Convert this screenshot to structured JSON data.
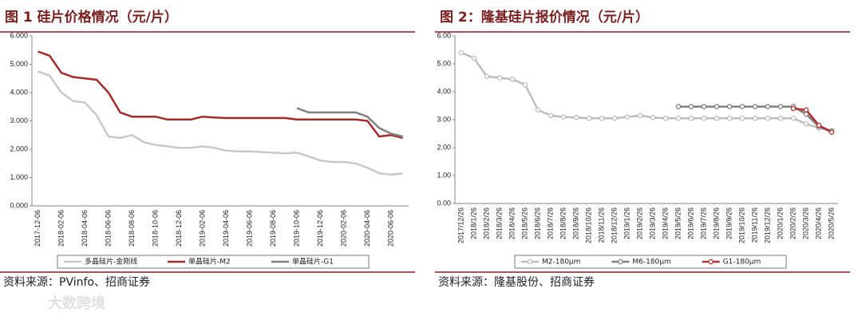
{
  "chart_data": [
    {
      "type": "line",
      "title": "图 1  硅片价格情况（元/片）",
      "source": "资料来源：PVinfo、招商证券",
      "categories": [
        "2017-12-06",
        null,
        "2018-02-06",
        null,
        "2018-04-06",
        null,
        "2018-06-06",
        null,
        "2018-08-06",
        null,
        "2018-10-06",
        null,
        "2018-12-06",
        null,
        "2019-02-06",
        null,
        "2019-04-06",
        null,
        "2019-06-06",
        null,
        "2019-08-06",
        null,
        "2019-10-06",
        null,
        "2019-12-06",
        null,
        "2020-02-06",
        null,
        "2020-04-06",
        null,
        "2020-06-06",
        null
      ],
      "series": [
        {
          "name": "多晶硅片-金刚线",
          "color": "#c8c8c8",
          "values": [
            4.75,
            4.6,
            4.0,
            3.7,
            3.65,
            3.2,
            2.45,
            2.4,
            2.5,
            2.25,
            2.15,
            2.1,
            2.05,
            2.05,
            2.1,
            2.05,
            1.95,
            1.92,
            1.92,
            1.9,
            1.88,
            1.85,
            1.88,
            1.75,
            1.6,
            1.55,
            1.55,
            1.5,
            1.35,
            1.15,
            1.1,
            1.15
          ]
        },
        {
          "name": "单晶硅片-M2",
          "color": "#a52a2a",
          "values": [
            5.45,
            5.3,
            4.7,
            4.55,
            4.5,
            4.45,
            4.0,
            3.3,
            3.15,
            3.15,
            3.15,
            3.05,
            3.05,
            3.05,
            3.15,
            3.12,
            3.1,
            3.1,
            3.1,
            3.1,
            3.1,
            3.1,
            3.05,
            3.05,
            3.05,
            3.05,
            3.05,
            3.05,
            3.0,
            2.45,
            2.5,
            2.4
          ]
        },
        {
          "name": "单晶硅片-G1",
          "color": "#808080",
          "values": [
            null,
            null,
            null,
            null,
            null,
            null,
            null,
            null,
            null,
            null,
            null,
            null,
            null,
            null,
            null,
            null,
            null,
            null,
            null,
            null,
            null,
            null,
            3.45,
            3.3,
            3.3,
            3.3,
            3.3,
            3.3,
            3.15,
            2.75,
            2.55,
            2.45
          ]
        }
      ],
      "ylim": [
        0,
        6
      ],
      "yticks": [
        {
          "value": 0,
          "label": "0.000"
        },
        {
          "value": 1,
          "label": "1.000"
        },
        {
          "value": 2,
          "label": "2.000"
        },
        {
          "value": 3,
          "label": "3.000"
        },
        {
          "value": 4,
          "label": "4.000"
        },
        {
          "value": 5,
          "label": "5.000"
        },
        {
          "value": 6,
          "label": "6.000"
        }
      ],
      "markers": false
    },
    {
      "type": "line",
      "title": "图 2：隆基硅片报价情况（元/片）",
      "source": "资料来源：隆基股份、招商证券",
      "categories": [
        "2017/12/26",
        "2018/1/26",
        "2018/2/26",
        "2018/3/26",
        "2018/4/26",
        "2018/5/26",
        "2018/6/26",
        "2018/7/26",
        "2018/8/26",
        "2018/9/26",
        "2018/10/26",
        "2018/11/26",
        "2018/12/26",
        "2019/1/26",
        "2019/2/26",
        "2019/3/26",
        "2019/4/26",
        "2019/5/26",
        "2019/6/26",
        "2019/7/26",
        "2019/8/26",
        "2019/9/26",
        "2019/10/26",
        "2019/11/26",
        "2019/12/26",
        "2020/1/26",
        "2020/2/26",
        "2020/3/26",
        "2020/4/26",
        "2020/5/26"
      ],
      "series": [
        {
          "name": "M2-180μm",
          "color": "#bdbdbd",
          "values": [
            5.4,
            5.2,
            4.55,
            4.5,
            4.45,
            4.25,
            3.35,
            3.15,
            3.1,
            3.08,
            3.05,
            3.05,
            3.05,
            3.1,
            3.15,
            3.08,
            3.05,
            3.05,
            3.05,
            3.05,
            3.05,
            3.05,
            3.05,
            3.05,
            3.05,
            3.05,
            3.05,
            2.85,
            2.7,
            2.6
          ]
        },
        {
          "name": "M6-180μm",
          "color": "#7f7f7f",
          "values": [
            null,
            null,
            null,
            null,
            null,
            null,
            null,
            null,
            null,
            null,
            null,
            null,
            null,
            null,
            null,
            null,
            null,
            3.47,
            3.47,
            3.47,
            3.47,
            3.47,
            3.47,
            3.47,
            3.47,
            3.47,
            3.47,
            3.2,
            2.75,
            2.6
          ]
        },
        {
          "name": "G1-180μm",
          "color": "#b03030",
          "values": [
            null,
            null,
            null,
            null,
            null,
            null,
            null,
            null,
            null,
            null,
            null,
            null,
            null,
            null,
            null,
            null,
            null,
            null,
            null,
            null,
            null,
            null,
            null,
            null,
            null,
            null,
            3.4,
            3.35,
            2.8,
            2.55
          ]
        }
      ],
      "ylim": [
        0,
        6
      ],
      "yticks": [
        {
          "value": 0,
          "label": "0.00"
        },
        {
          "value": 1,
          "label": "1.00"
        },
        {
          "value": 2,
          "label": "2.00"
        },
        {
          "value": 3,
          "label": "3.00"
        },
        {
          "value": 4,
          "label": "4.00"
        },
        {
          "value": 5,
          "label": "5.00"
        },
        {
          "value": 6,
          "label": "6.00"
        }
      ],
      "markers": true
    }
  ],
  "watermark": "大数跨境"
}
